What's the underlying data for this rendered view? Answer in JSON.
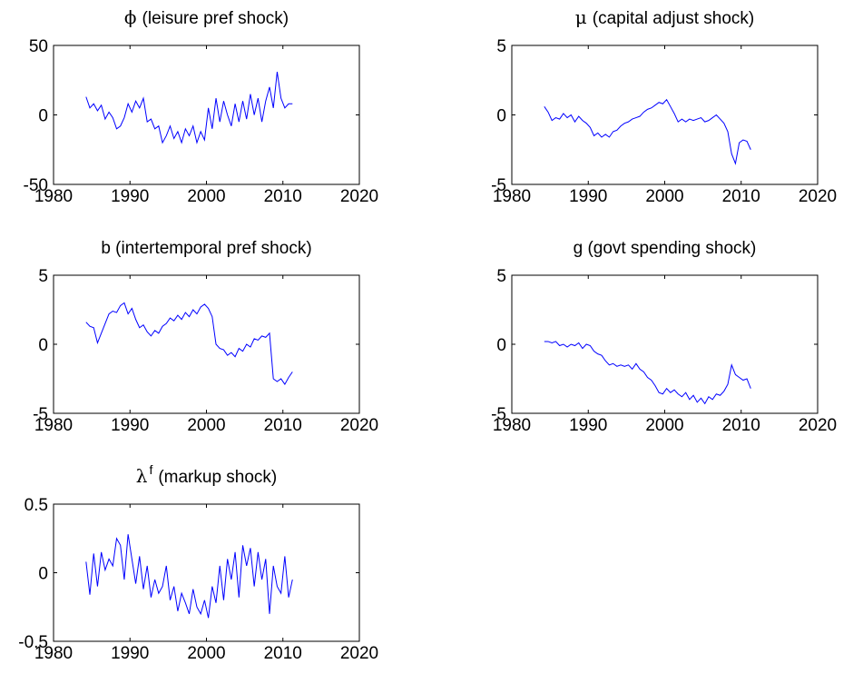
{
  "chart_data": [
    {
      "type": "line",
      "title_symbol": "ϕ",
      "title": "(leisure pref shock)",
      "color": "#0000ff",
      "x": [
        1984.25,
        1984.75,
        1985.25,
        1985.75,
        1986.25,
        1986.75,
        1987.25,
        1987.75,
        1988.25,
        1988.75,
        1989.25,
        1989.75,
        1990.25,
        1990.75,
        1991.25,
        1991.75,
        1992.25,
        1992.75,
        1993.25,
        1993.75,
        1994.25,
        1994.75,
        1995.25,
        1995.75,
        1996.25,
        1996.75,
        1997.25,
        1997.75,
        1998.25,
        1998.75,
        1999.25,
        1999.75,
        2000.25,
        2000.75,
        2001.25,
        2001.75,
        2002.25,
        2002.75,
        2003.25,
        2003.75,
        2004.25,
        2004.75,
        2005.25,
        2005.75,
        2006.25,
        2006.75,
        2007.25,
        2007.75,
        2008.25,
        2008.75,
        2009.25,
        2009.75,
        2010.25,
        2010.75,
        2011.25
      ],
      "values": [
        13,
        5,
        8,
        3,
        7,
        -3,
        2,
        -2,
        -10,
        -8,
        -2,
        8,
        2,
        10,
        5,
        12,
        -5,
        -3,
        -10,
        -8,
        -20,
        -15,
        -8,
        -17,
        -12,
        -20,
        -10,
        -15,
        -8,
        -20,
        -12,
        -18,
        5,
        -10,
        12,
        -5,
        10,
        0,
        -8,
        8,
        -5,
        10,
        -3,
        15,
        0,
        12,
        -5,
        10,
        20,
        5,
        31,
        12,
        5,
        8,
        8
      ],
      "xlim": [
        1980,
        2020
      ],
      "xticks": [
        1980,
        1990,
        2000,
        2010,
        2020
      ],
      "ylim": [
        -50,
        50
      ],
      "yticks": [
        -50,
        0,
        50
      ]
    },
    {
      "type": "line",
      "title_symbol": "μ",
      "title": "(capital adjust shock)",
      "color": "#0000ff",
      "x": [
        1984.25,
        1984.75,
        1985.25,
        1985.75,
        1986.25,
        1986.75,
        1987.25,
        1987.75,
        1988.25,
        1988.75,
        1989.25,
        1989.75,
        1990.25,
        1990.75,
        1991.25,
        1991.75,
        1992.25,
        1992.75,
        1993.25,
        1993.75,
        1994.25,
        1994.75,
        1995.25,
        1995.75,
        1996.25,
        1996.75,
        1997.25,
        1997.75,
        1998.25,
        1998.75,
        1999.25,
        1999.75,
        2000.25,
        2000.75,
        2001.25,
        2001.75,
        2002.25,
        2002.75,
        2003.25,
        2003.75,
        2004.25,
        2004.75,
        2005.25,
        2005.75,
        2006.25,
        2006.75,
        2007.25,
        2007.75,
        2008.25,
        2008.75,
        2009.25,
        2009.75,
        2010.25,
        2010.75,
        2011.25
      ],
      "values": [
        0.6,
        0.2,
        -0.4,
        -0.2,
        -0.3,
        0.1,
        -0.2,
        0,
        -0.5,
        -0.1,
        -0.4,
        -0.6,
        -0.9,
        -1.5,
        -1.3,
        -1.6,
        -1.4,
        -1.6,
        -1.2,
        -1.1,
        -0.8,
        -0.6,
        -0.5,
        -0.3,
        -0.2,
        -0.1,
        0.2,
        0.4,
        0.5,
        0.7,
        0.9,
        0.8,
        1.1,
        0.6,
        0.1,
        -0.5,
        -0.3,
        -0.5,
        -0.3,
        -0.4,
        -0.3,
        -0.2,
        -0.5,
        -0.4,
        -0.2,
        0,
        -0.3,
        -0.6,
        -1.2,
        -2.8,
        -3.5,
        -2,
        -1.8,
        -1.9,
        -2.5
      ],
      "xlim": [
        1980,
        2020
      ],
      "xticks": [
        1980,
        1990,
        2000,
        2010,
        2020
      ],
      "ylim": [
        -5,
        5
      ],
      "yticks": [
        -5,
        0,
        5
      ]
    },
    {
      "type": "line",
      "title": "b (intertemporal pref shock)",
      "color": "#0000ff",
      "x": [
        1984.25,
        1984.75,
        1985.25,
        1985.75,
        1986.25,
        1986.75,
        1987.25,
        1987.75,
        1988.25,
        1988.75,
        1989.25,
        1989.75,
        1990.25,
        1990.75,
        1991.25,
        1991.75,
        1992.25,
        1992.75,
        1993.25,
        1993.75,
        1994.25,
        1994.75,
        1995.25,
        1995.75,
        1996.25,
        1996.75,
        1997.25,
        1997.75,
        1998.25,
        1998.75,
        1999.25,
        1999.75,
        2000.25,
        2000.75,
        2001.25,
        2001.75,
        2002.25,
        2002.75,
        2003.25,
        2003.75,
        2004.25,
        2004.75,
        2005.25,
        2005.75,
        2006.25,
        2006.75,
        2007.25,
        2007.75,
        2008.25,
        2008.75,
        2009.25,
        2009.75,
        2010.25,
        2010.75,
        2011.25
      ],
      "values": [
        1.6,
        1.3,
        1.2,
        0.1,
        0.8,
        1.5,
        2.2,
        2.4,
        2.3,
        2.8,
        3.0,
        2.2,
        2.6,
        1.8,
        1.2,
        1.4,
        0.9,
        0.6,
        1.0,
        0.8,
        1.3,
        1.5,
        1.9,
        1.7,
        2.1,
        1.8,
        2.3,
        2.0,
        2.5,
        2.2,
        2.7,
        2.9,
        2.6,
        2.0,
        0.0,
        -0.3,
        -0.4,
        -0.8,
        -0.6,
        -0.9,
        -0.3,
        -0.5,
        0.0,
        -0.2,
        0.4,
        0.3,
        0.6,
        0.5,
        0.8,
        -2.5,
        -2.7,
        -2.5,
        -2.9,
        -2.4,
        -2.0
      ],
      "xlim": [
        1980,
        2020
      ],
      "xticks": [
        1980,
        1990,
        2000,
        2010,
        2020
      ],
      "ylim": [
        -5,
        5
      ],
      "yticks": [
        -5,
        0,
        5
      ]
    },
    {
      "type": "line",
      "title": "g (govt spending shock)",
      "color": "#0000ff",
      "x": [
        1984.25,
        1984.75,
        1985.25,
        1985.75,
        1986.25,
        1986.75,
        1987.25,
        1987.75,
        1988.25,
        1988.75,
        1989.25,
        1989.75,
        1990.25,
        1990.75,
        1991.25,
        1991.75,
        1992.25,
        1992.75,
        1993.25,
        1993.75,
        1994.25,
        1994.75,
        1995.25,
        1995.75,
        1996.25,
        1996.75,
        1997.25,
        1997.75,
        1998.25,
        1998.75,
        1999.25,
        1999.75,
        2000.25,
        2000.75,
        2001.25,
        2001.75,
        2002.25,
        2002.75,
        2003.25,
        2003.75,
        2004.25,
        2004.75,
        2005.25,
        2005.75,
        2006.25,
        2006.75,
        2007.25,
        2007.75,
        2008.25,
        2008.75,
        2009.25,
        2009.75,
        2010.25,
        2010.75,
        2011.25
      ],
      "values": [
        0.2,
        0.2,
        0.1,
        0.2,
        -0.1,
        0.0,
        -0.2,
        0.0,
        -0.1,
        0.1,
        -0.3,
        0.0,
        -0.1,
        -0.5,
        -0.7,
        -0.8,
        -1.2,
        -1.5,
        -1.4,
        -1.6,
        -1.5,
        -1.6,
        -1.5,
        -1.8,
        -1.4,
        -1.8,
        -2.0,
        -2.4,
        -2.6,
        -3.0,
        -3.5,
        -3.6,
        -3.2,
        -3.5,
        -3.3,
        -3.6,
        -3.8,
        -3.5,
        -4.0,
        -3.7,
        -4.2,
        -3.9,
        -4.3,
        -3.8,
        -4.0,
        -3.6,
        -3.7,
        -3.4,
        -2.9,
        -1.5,
        -2.2,
        -2.4,
        -2.6,
        -2.5,
        -3.2
      ],
      "xlim": [
        1980,
        2020
      ],
      "xticks": [
        1980,
        1990,
        2000,
        2010,
        2020
      ],
      "ylim": [
        -5,
        5
      ],
      "yticks": [
        -5,
        0,
        5
      ]
    },
    {
      "type": "line",
      "title_symbol": "λ",
      "title_superscript": "f",
      "title": "(markup shock)",
      "color": "#0000ff",
      "x": [
        1984.25,
        1984.75,
        1985.25,
        1985.75,
        1986.25,
        1986.75,
        1987.25,
        1987.75,
        1988.25,
        1988.75,
        1989.25,
        1989.75,
        1990.25,
        1990.75,
        1991.25,
        1991.75,
        1992.25,
        1992.75,
        1993.25,
        1993.75,
        1994.25,
        1994.75,
        1995.25,
        1995.75,
        1996.25,
        1996.75,
        1997.25,
        1997.75,
        1998.25,
        1998.75,
        1999.25,
        1999.75,
        2000.25,
        2000.75,
        2001.25,
        2001.75,
        2002.25,
        2002.75,
        2003.25,
        2003.75,
        2004.25,
        2004.75,
        2005.25,
        2005.75,
        2006.25,
        2006.75,
        2007.25,
        2007.75,
        2008.25,
        2008.75,
        2009.25,
        2009.75,
        2010.25,
        2010.75,
        2011.25
      ],
      "values": [
        0.08,
        -0.16,
        0.14,
        -0.1,
        0.15,
        0.02,
        0.1,
        0.05,
        0.25,
        0.2,
        -0.05,
        0.28,
        0.1,
        -0.08,
        0.12,
        -0.12,
        0.05,
        -0.18,
        -0.05,
        -0.15,
        -0.1,
        0.05,
        -0.2,
        -0.1,
        -0.28,
        -0.15,
        -0.22,
        -0.3,
        -0.12,
        -0.25,
        -0.3,
        -0.2,
        -0.33,
        -0.1,
        -0.22,
        0.05,
        -0.2,
        0.1,
        -0.05,
        0.15,
        -0.18,
        0.2,
        0.05,
        0.18,
        -0.1,
        0.15,
        -0.05,
        0.1,
        -0.3,
        0.05,
        -0.1,
        -0.15,
        0.12,
        -0.18,
        -0.05
      ],
      "xlim": [
        1980,
        2020
      ],
      "xticks": [
        1980,
        1990,
        2000,
        2010,
        2020
      ],
      "ylim": [
        -0.5,
        0.5
      ],
      "yticks": [
        -0.5,
        0,
        0.5
      ]
    }
  ]
}
